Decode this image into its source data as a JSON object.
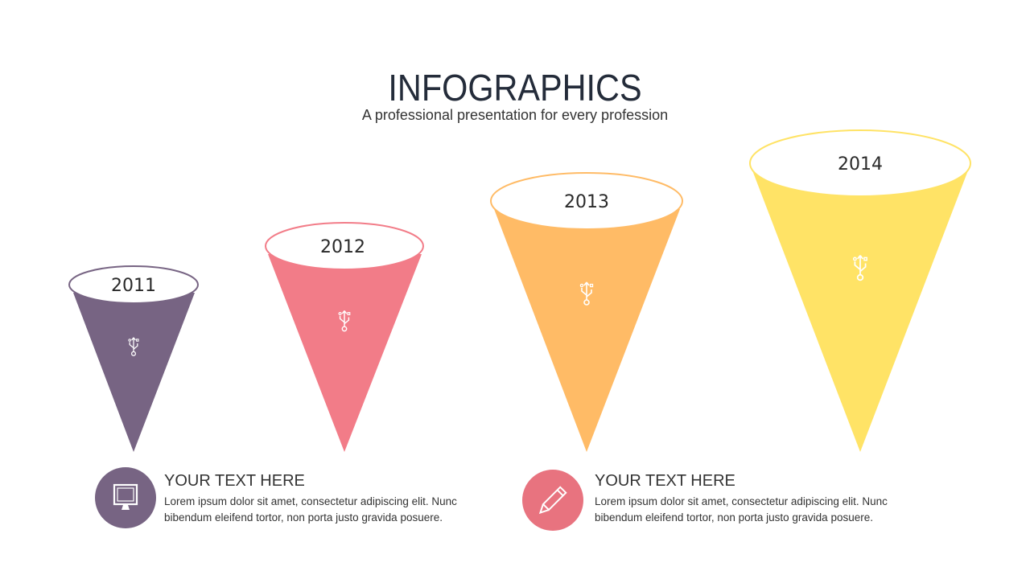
{
  "header": {
    "title": "INFOGRAPHICS",
    "subtitle": "A professional presentation for every profession"
  },
  "cones": [
    {
      "year": "2011",
      "color": "#776483",
      "icon": "usb-icon"
    },
    {
      "year": "2012",
      "color": "#F27C88",
      "icon": "usb-icon"
    },
    {
      "year": "2013",
      "color": "#FFBB66",
      "icon": "usb-icon"
    },
    {
      "year": "2014",
      "color": "#FFE366",
      "icon": "usb-icon"
    }
  ],
  "items": [
    {
      "icon": "monitor-icon",
      "color": "#776483",
      "heading": "YOUR TEXT HERE",
      "line1": "Lorem ipsum dolor sit amet, consectetur adipiscing elit. Nunc",
      "line2": "bibendum  eleifend tortor,  non porta  justo gravida posuere."
    },
    {
      "icon": "pencil-icon",
      "color": "#E8737F",
      "heading": "YOUR TEXT HERE",
      "line1": "Lorem ipsum dolor sit amet, consectetur adipiscing elit. Nunc",
      "line2": "bibendum  eleifend tortor,  non porta  justo gravida posuere."
    }
  ]
}
